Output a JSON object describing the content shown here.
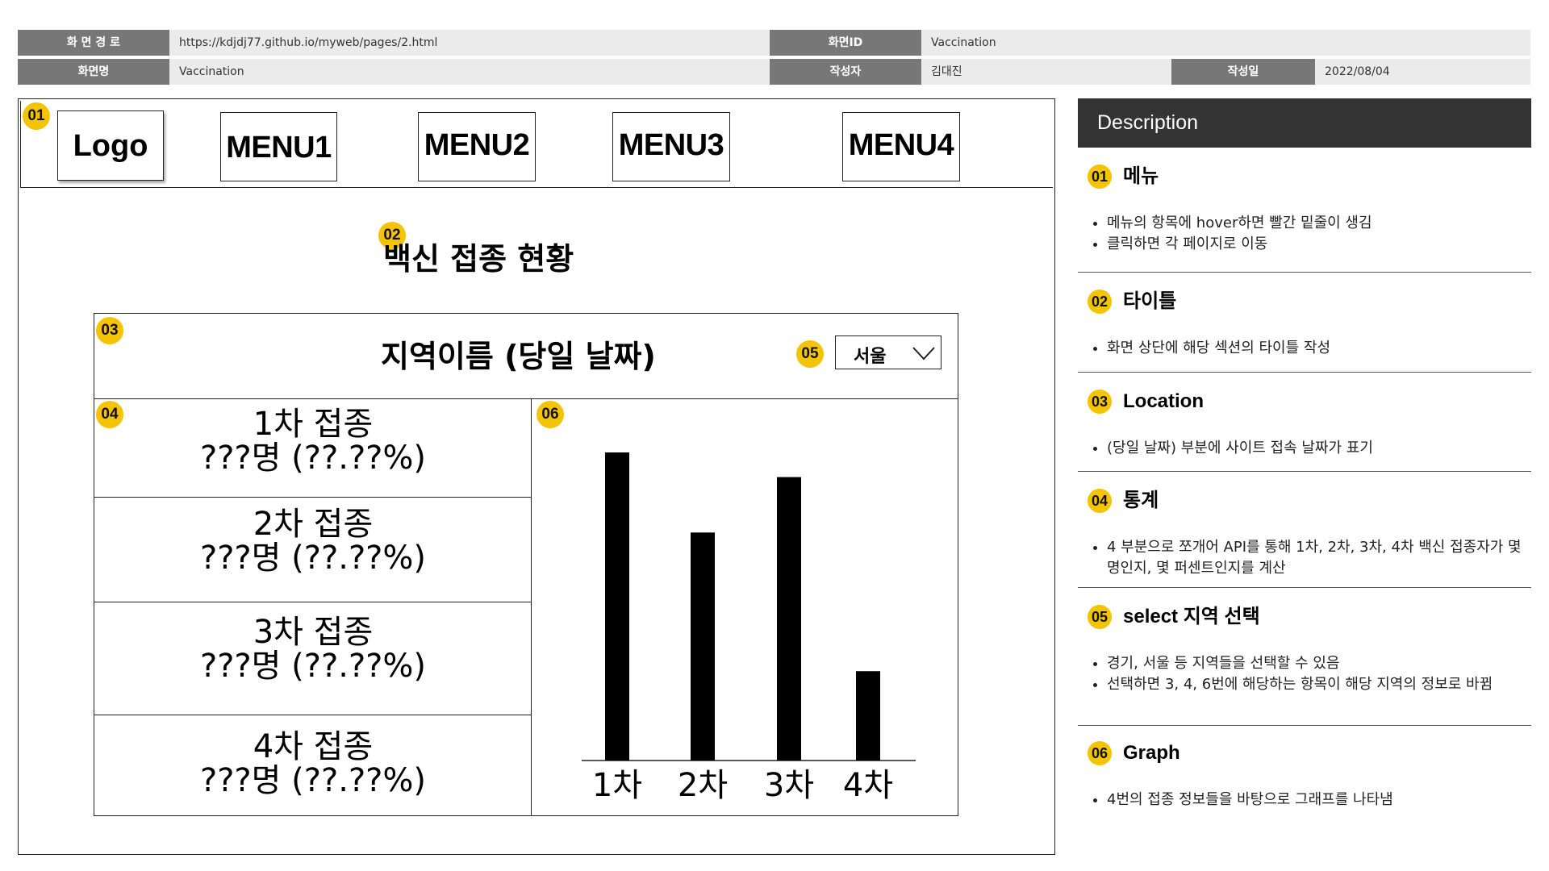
{
  "meta": {
    "screen_path_label": "화 면 경 로",
    "screen_path_value": "https://kdjdj77.github.io/myweb/pages/2.html",
    "screen_id_label": "화면ID",
    "screen_id_value": "Vaccination",
    "screen_name_label": "화면명",
    "screen_name_value": "Vaccination",
    "author_label": "작성자",
    "author_value": "김대진",
    "date_label": "작성일",
    "date_value": "2022/08/04"
  },
  "colors": {
    "badge": "#f5c400",
    "label_bg": "#777777",
    "value_bg": "#ebebeb",
    "desc_header_bg": "#333333"
  },
  "wireframe": {
    "nav": {
      "logo": "Logo",
      "menu1": "MENU1",
      "menu2": "MENU2",
      "menu3": "MENU3",
      "menu4": "MENU4"
    },
    "title": "백신 접종 현황",
    "region_title": "지역이름 (당일 날짜)",
    "select_value": "서울",
    "stats": [
      {
        "dose": "1차 접종",
        "value": "???명 (??.??%)"
      },
      {
        "dose": "2차 접종",
        "value": "???명 (??.??%)"
      },
      {
        "dose": "3차 접종",
        "value": "???명 (??.??%)"
      },
      {
        "dose": "4차 접종",
        "value": "???명 (??.??%)"
      }
    ],
    "badges": {
      "b01": "01",
      "b02": "02",
      "b03": "03",
      "b04": "04",
      "b05": "05",
      "b06": "06"
    }
  },
  "chart_data": {
    "type": "bar",
    "categories": [
      "1차",
      "2차",
      "3차",
      "4차"
    ],
    "values": [
      100,
      74,
      92,
      29
    ],
    "ylim": [
      0,
      100
    ],
    "grid": false,
    "legend": "none",
    "bar_color": "#000000"
  },
  "description": {
    "header": "Description",
    "sections": [
      {
        "num": "01",
        "title": "메뉴",
        "items": [
          "메뉴의 항목에 hover하면 빨간 밑줄이 생김",
          "클릭하면 각 페이지로 이동"
        ]
      },
      {
        "num": "02",
        "title": "타이틀",
        "items": [
          "화면 상단에 해당 섹션의 타이틀 작성"
        ]
      },
      {
        "num": "03",
        "title": "Location",
        "items": [
          "(당일 날짜) 부분에 사이트 접속 날짜가 표기"
        ]
      },
      {
        "num": "04",
        "title": "통계",
        "items": [
          "4 부분으로 쪼개어 API를 통해 1차, 2차, 3차, 4차 백신 접종자가 몇 명인지, 몇 퍼센트인지를 계산"
        ]
      },
      {
        "num": "05",
        "title": "select 지역 선택",
        "items": [
          "경기, 서울 등 지역들을 선택할 수 있음",
          "선택하면 3, 4, 6번에 해당하는 항목이 해당 지역의 정보로 바뀜"
        ]
      },
      {
        "num": "06",
        "title": "Graph",
        "items": [
          "4번의 접종 정보들을 바탕으로 그래프를 나타냄"
        ]
      }
    ]
  }
}
